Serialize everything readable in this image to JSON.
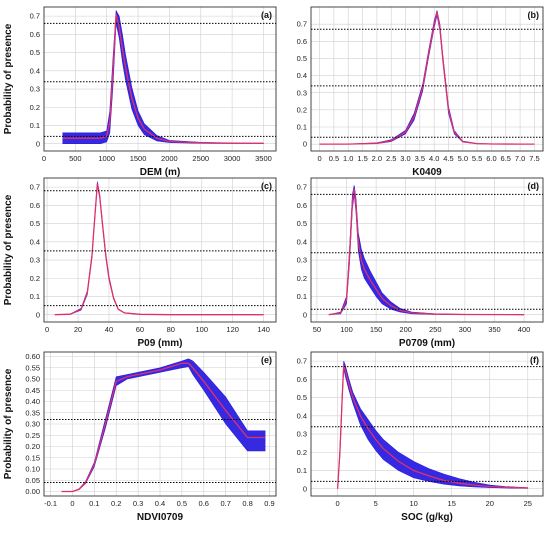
{
  "colors": {
    "band": "#2b1ee0",
    "mean": "#e0306a",
    "threshold": "#000000",
    "grid": "#d0d0d0"
  },
  "chart_data": [
    {
      "type": "line",
      "panel_label": "(a)",
      "xlabel": "DEM (m)",
      "ylabel": "Probability of presence",
      "xlim": [
        0,
        3700
      ],
      "ylim": [
        -0.04,
        0.75
      ],
      "xticks": [
        {
          "v": 0,
          "t": "0"
        },
        {
          "v": 500,
          "t": "500"
        },
        {
          "v": 1000,
          "t": "1000"
        },
        {
          "v": 1500,
          "t": "1500"
        },
        {
          "v": 2000,
          "t": "2000"
        },
        {
          "v": 2500,
          "t": "2500"
        },
        {
          "v": 3000,
          "t": "3000"
        },
        {
          "v": 3500,
          "t": "3500"
        }
      ],
      "yticks": [
        {
          "v": 0,
          "t": "0"
        },
        {
          "v": 0.1,
          "t": "0.1"
        },
        {
          "v": 0.2,
          "t": "0.2"
        },
        {
          "v": 0.3,
          "t": "0.3"
        },
        {
          "v": 0.4,
          "t": "0.4"
        },
        {
          "v": 0.5,
          "t": "0.5"
        },
        {
          "v": 0.6,
          "t": "0.6"
        },
        {
          "v": 0.7,
          "t": "0.7"
        }
      ],
      "thresholds": [
        0.66,
        0.34,
        0.04
      ],
      "x": [
        300,
        500,
        700,
        900,
        1000,
        1050,
        1100,
        1150,
        1200,
        1250,
        1300,
        1400,
        1500,
        1600,
        1800,
        2000,
        2500,
        3000,
        3500
      ],
      "mean": [
        0.03,
        0.03,
        0.03,
        0.03,
        0.04,
        0.12,
        0.4,
        0.71,
        0.64,
        0.52,
        0.42,
        0.25,
        0.14,
        0.08,
        0.03,
        0.012,
        0.005,
        0.003,
        0.002
      ],
      "lower": [
        0.0,
        0.0,
        0.0,
        0.0,
        0.01,
        0.06,
        0.32,
        0.66,
        0.58,
        0.45,
        0.35,
        0.19,
        0.1,
        0.05,
        0.015,
        0.006,
        0.002,
        0.001,
        0.001
      ],
      "upper": [
        0.06,
        0.06,
        0.06,
        0.06,
        0.07,
        0.18,
        0.47,
        0.73,
        0.7,
        0.6,
        0.49,
        0.31,
        0.18,
        0.11,
        0.045,
        0.018,
        0.008,
        0.004,
        0.003
      ]
    },
    {
      "type": "line",
      "panel_label": "(b)",
      "xlabel": "K0409",
      "ylabel": "",
      "xlim": [
        -0.3,
        7.8
      ],
      "ylim": [
        -0.04,
        0.8
      ],
      "xticks": [
        {
          "v": 0,
          "t": "0"
        },
        {
          "v": 0.5,
          "t": "0.5"
        },
        {
          "v": 1.0,
          "t": "1.0"
        },
        {
          "v": 1.5,
          "t": "1.5"
        },
        {
          "v": 2.0,
          "t": "2.0"
        },
        {
          "v": 2.5,
          "t": "2.5"
        },
        {
          "v": 3.0,
          "t": "3.0"
        },
        {
          "v": 3.5,
          "t": "3.5"
        },
        {
          "v": 4.0,
          "t": "4.0"
        },
        {
          "v": 4.5,
          "t": "4.5"
        },
        {
          "v": 5.0,
          "t": "5.0"
        },
        {
          "v": 5.5,
          "t": "5.5"
        },
        {
          "v": 6.0,
          "t": "6.0"
        },
        {
          "v": 6.5,
          "t": "6.5"
        },
        {
          "v": 7.0,
          "t": "7.0"
        },
        {
          "v": 7.5,
          "t": "7.5"
        }
      ],
      "yticks": [
        {
          "v": 0,
          "t": "0"
        },
        {
          "v": 0.1,
          "t": "0.1"
        },
        {
          "v": 0.2,
          "t": "0.2"
        },
        {
          "v": 0.3,
          "t": "0.3"
        },
        {
          "v": 0.4,
          "t": "0.4"
        },
        {
          "v": 0.5,
          "t": "0.5"
        },
        {
          "v": 0.6,
          "t": "0.6"
        },
        {
          "v": 0.7,
          "t": "0.7"
        }
      ],
      "thresholds": [
        0.67,
        0.34,
        0.04
      ],
      "x": [
        0,
        1.0,
        2.0,
        2.5,
        3.0,
        3.3,
        3.6,
        3.8,
        4.0,
        4.1,
        4.2,
        4.3,
        4.5,
        4.7,
        5.0,
        5.5,
        6.0,
        7.0,
        7.5
      ],
      "mean": [
        0.0,
        0.0,
        0.005,
        0.02,
        0.07,
        0.16,
        0.33,
        0.52,
        0.7,
        0.77,
        0.68,
        0.5,
        0.2,
        0.07,
        0.015,
        0.003,
        0.001,
        0.0,
        0.0
      ],
      "lower": [
        0.0,
        0.0,
        0.003,
        0.015,
        0.06,
        0.14,
        0.31,
        0.5,
        0.68,
        0.75,
        0.66,
        0.48,
        0.18,
        0.06,
        0.012,
        0.002,
        0.0,
        0.0,
        0.0
      ],
      "upper": [
        0.0,
        0.0,
        0.008,
        0.026,
        0.08,
        0.18,
        0.35,
        0.54,
        0.72,
        0.78,
        0.7,
        0.52,
        0.22,
        0.08,
        0.018,
        0.004,
        0.002,
        0.0,
        0.0
      ]
    },
    {
      "type": "line",
      "panel_label": "(c)",
      "xlabel": "P09 (mm)",
      "ylabel": "Probability of presence",
      "xlim": [
        -2,
        148
      ],
      "ylim": [
        -0.04,
        0.75
      ],
      "xticks": [
        {
          "v": 0,
          "t": "0"
        },
        {
          "v": 20,
          "t": "20"
        },
        {
          "v": 40,
          "t": "40"
        },
        {
          "v": 60,
          "t": "60"
        },
        {
          "v": 80,
          "t": "80"
        },
        {
          "v": 100,
          "t": "100"
        },
        {
          "v": 120,
          "t": "120"
        },
        {
          "v": 140,
          "t": "140"
        }
      ],
      "yticks": [
        {
          "v": 0,
          "t": "0"
        },
        {
          "v": 0.1,
          "t": "0.1"
        },
        {
          "v": 0.2,
          "t": "0.2"
        },
        {
          "v": 0.3,
          "t": "0.3"
        },
        {
          "v": 0.4,
          "t": "0.4"
        },
        {
          "v": 0.5,
          "t": "0.5"
        },
        {
          "v": 0.6,
          "t": "0.6"
        },
        {
          "v": 0.7,
          "t": "0.7"
        }
      ],
      "thresholds": [
        0.68,
        0.35,
        0.05
      ],
      "x": [
        5,
        15,
        22,
        26,
        29,
        31,
        32.5,
        34,
        36,
        38,
        40,
        43,
        46,
        50,
        60,
        80,
        100,
        140
      ],
      "mean": [
        0.0,
        0.003,
        0.03,
        0.12,
        0.32,
        0.55,
        0.72,
        0.65,
        0.48,
        0.32,
        0.2,
        0.09,
        0.03,
        0.01,
        0.002,
        0.0,
        0.0,
        0.0
      ],
      "lower": [
        0.0,
        0.002,
        0.025,
        0.11,
        0.31,
        0.54,
        0.71,
        0.64,
        0.47,
        0.31,
        0.19,
        0.085,
        0.028,
        0.009,
        0.002,
        0.0,
        0.0,
        0.0
      ],
      "upper": [
        0.0,
        0.004,
        0.035,
        0.13,
        0.33,
        0.56,
        0.73,
        0.66,
        0.49,
        0.33,
        0.21,
        0.095,
        0.032,
        0.011,
        0.003,
        0.0,
        0.0,
        0.0
      ]
    },
    {
      "type": "line",
      "panel_label": "(d)",
      "xlabel": "P0709 (mm)",
      "ylabel": "",
      "xlim": [
        40,
        432
      ],
      "ylim": [
        -0.04,
        0.75
      ],
      "xticks": [
        {
          "v": 50,
          "t": "50"
        },
        {
          "v": 100,
          "t": "100"
        },
        {
          "v": 150,
          "t": "150"
        },
        {
          "v": 200,
          "t": "200"
        },
        {
          "v": 250,
          "t": "250"
        },
        {
          "v": 300,
          "t": "300"
        },
        {
          "v": 350,
          "t": "350"
        },
        {
          "v": 400,
          "t": "400"
        }
      ],
      "yticks": [
        {
          "v": 0,
          "t": "0"
        },
        {
          "v": 0.1,
          "t": "0.1"
        },
        {
          "v": 0.2,
          "t": "0.2"
        },
        {
          "v": 0.3,
          "t": "0.3"
        },
        {
          "v": 0.4,
          "t": "0.4"
        },
        {
          "v": 0.5,
          "t": "0.5"
        },
        {
          "v": 0.6,
          "t": "0.6"
        },
        {
          "v": 0.7,
          "t": "0.7"
        }
      ],
      "thresholds": [
        0.66,
        0.34,
        0.03
      ],
      "x": [
        70,
        90,
        100,
        105,
        110,
        113,
        116,
        120,
        125,
        130,
        140,
        150,
        160,
        175,
        190,
        210,
        250,
        300,
        400
      ],
      "mean": [
        0.0,
        0.01,
        0.08,
        0.32,
        0.62,
        0.69,
        0.6,
        0.4,
        0.3,
        0.25,
        0.19,
        0.14,
        0.09,
        0.05,
        0.025,
        0.01,
        0.003,
        0.001,
        0.0
      ],
      "lower": [
        0.0,
        0.005,
        0.06,
        0.28,
        0.58,
        0.66,
        0.56,
        0.35,
        0.25,
        0.2,
        0.15,
        0.1,
        0.06,
        0.03,
        0.015,
        0.005,
        0.001,
        0.0,
        0.0
      ],
      "upper": [
        0.0,
        0.015,
        0.1,
        0.36,
        0.66,
        0.71,
        0.64,
        0.45,
        0.36,
        0.31,
        0.24,
        0.18,
        0.12,
        0.07,
        0.035,
        0.015,
        0.005,
        0.002,
        0.0
      ]
    },
    {
      "type": "line",
      "panel_label": "(e)",
      "xlabel": "NDVI0709",
      "ylabel": "Probability of presence",
      "xlim": [
        -0.13,
        0.93
      ],
      "ylim": [
        -0.02,
        0.62
      ],
      "xticks": [
        {
          "v": -0.1,
          "t": "-0.1"
        },
        {
          "v": 0,
          "t": "0"
        },
        {
          "v": 0.1,
          "t": "0.1"
        },
        {
          "v": 0.2,
          "t": "0.2"
        },
        {
          "v": 0.3,
          "t": "0.3"
        },
        {
          "v": 0.4,
          "t": "0.4"
        },
        {
          "v": 0.5,
          "t": "0.5"
        },
        {
          "v": 0.6,
          "t": "0.6"
        },
        {
          "v": 0.7,
          "t": "0.7"
        },
        {
          "v": 0.8,
          "t": "0.8"
        },
        {
          "v": 0.9,
          "t": "0.9"
        }
      ],
      "yticks": [
        {
          "v": 0,
          "t": "0.00"
        },
        {
          "v": 0.05,
          "t": "0.05"
        },
        {
          "v": 0.1,
          "t": "0.10"
        },
        {
          "v": 0.15,
          "t": "0.15"
        },
        {
          "v": 0.2,
          "t": "0.20"
        },
        {
          "v": 0.25,
          "t": "0.25"
        },
        {
          "v": 0.3,
          "t": "0.30"
        },
        {
          "v": 0.35,
          "t": "0.35"
        },
        {
          "v": 0.4,
          "t": "0.40"
        },
        {
          "v": 0.45,
          "t": "0.45"
        },
        {
          "v": 0.5,
          "t": "0.50"
        },
        {
          "v": 0.55,
          "t": "0.55"
        },
        {
          "v": 0.6,
          "t": "0.60"
        }
      ],
      "thresholds": [
        0.32,
        0.04
      ],
      "x": [
        -0.05,
        0.0,
        0.03,
        0.06,
        0.1,
        0.15,
        0.2,
        0.25,
        0.3,
        0.4,
        0.5,
        0.53,
        0.55,
        0.6,
        0.7,
        0.8,
        0.88
      ],
      "mean": [
        0.0,
        0.0,
        0.01,
        0.04,
        0.12,
        0.3,
        0.49,
        0.51,
        0.52,
        0.54,
        0.57,
        0.57,
        0.55,
        0.49,
        0.36,
        0.24,
        0.24
      ],
      "lower": [
        0.0,
        0.0,
        0.008,
        0.035,
        0.11,
        0.28,
        0.47,
        0.5,
        0.51,
        0.53,
        0.55,
        0.555,
        0.52,
        0.45,
        0.3,
        0.18,
        0.18
      ],
      "upper": [
        0.0,
        0.0,
        0.012,
        0.045,
        0.13,
        0.32,
        0.51,
        0.52,
        0.53,
        0.55,
        0.58,
        0.59,
        0.58,
        0.53,
        0.42,
        0.27,
        0.27
      ]
    },
    {
      "type": "line",
      "panel_label": "(f)",
      "xlabel": "SOC (g/kg)",
      "ylabel": "",
      "xlim": [
        -3.5,
        27
      ],
      "ylim": [
        -0.04,
        0.75
      ],
      "xticks": [
        {
          "v": 0,
          "t": "0"
        },
        {
          "v": 5,
          "t": "5"
        },
        {
          "v": 10,
          "t": "10"
        },
        {
          "v": 15,
          "t": "15"
        },
        {
          "v": 20,
          "t": "20"
        },
        {
          "v": 25,
          "t": "25"
        }
      ],
      "yticks": [
        {
          "v": 0,
          "t": "0"
        },
        {
          "v": 0.1,
          "t": "0.1"
        },
        {
          "v": 0.2,
          "t": "0.2"
        },
        {
          "v": 0.3,
          "t": "0.3"
        },
        {
          "v": 0.4,
          "t": "0.4"
        },
        {
          "v": 0.5,
          "t": "0.5"
        },
        {
          "v": 0.6,
          "t": "0.6"
        },
        {
          "v": 0.7,
          "t": "0.7"
        }
      ],
      "thresholds": [
        0.67,
        0.34,
        0.04
      ],
      "x": [
        0.0,
        0.3,
        0.6,
        0.8,
        1.0,
        1.5,
        2.0,
        3.0,
        4.0,
        5.0,
        6.0,
        8.0,
        10.0,
        12.0,
        14.0,
        16.0,
        18.0,
        20.0,
        22.0,
        25.0
      ],
      "mean": [
        0.0,
        0.2,
        0.5,
        0.68,
        0.65,
        0.57,
        0.5,
        0.4,
        0.33,
        0.27,
        0.22,
        0.15,
        0.1,
        0.07,
        0.045,
        0.03,
        0.02,
        0.012,
        0.008,
        0.004
      ],
      "lower": [
        0.0,
        0.18,
        0.48,
        0.66,
        0.62,
        0.54,
        0.47,
        0.35,
        0.27,
        0.21,
        0.16,
        0.1,
        0.06,
        0.04,
        0.025,
        0.015,
        0.01,
        0.006,
        0.004,
        0.002
      ],
      "upper": [
        0.0,
        0.22,
        0.52,
        0.7,
        0.68,
        0.6,
        0.53,
        0.44,
        0.38,
        0.32,
        0.27,
        0.2,
        0.15,
        0.11,
        0.08,
        0.055,
        0.035,
        0.02,
        0.012,
        0.006
      ]
    }
  ]
}
